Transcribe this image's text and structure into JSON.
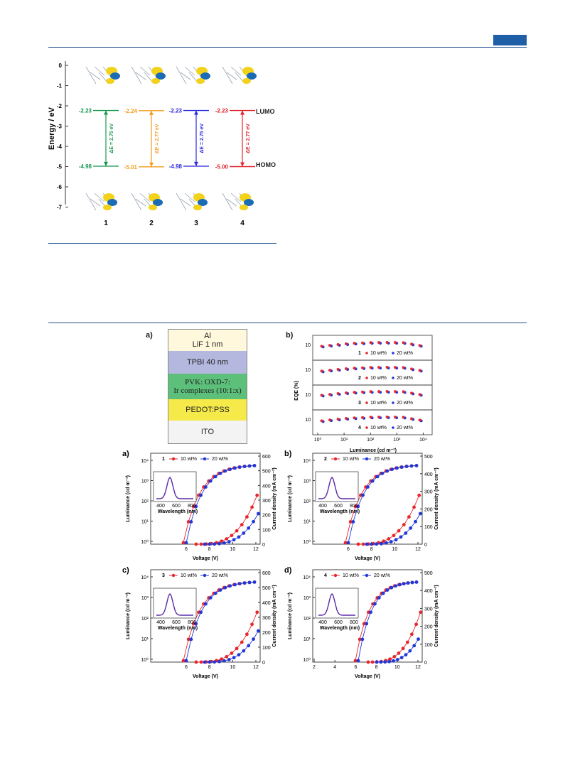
{
  "energy_diagram": {
    "ylabel": "Energy / eV",
    "yticks": [
      "0",
      "-1",
      "-2",
      "-3",
      "-4",
      "-5",
      "-6",
      "-7"
    ],
    "lumo_label": "LUMO",
    "homo_label": "HOMO",
    "complexes": [
      {
        "id": "1",
        "lumo": "-2.23",
        "homo": "-4.98",
        "gap": "ΔE = 2.75 eV",
        "color": "#1a9850"
      },
      {
        "id": "2",
        "lumo": "-2.24",
        "homo": "-5.01",
        "gap": "ΔE = 2.77 eV",
        "color": "#f39c1f"
      },
      {
        "id": "3",
        "lumo": "-2.23",
        "homo": "-4.98",
        "gap": "ΔE = 2.75 eV",
        "color": "#2c2cdc"
      },
      {
        "id": "4",
        "lumo": "-2.23",
        "homo": "-5.00",
        "gap": "ΔE = 2.77 eV",
        "color": "#e0242b"
      }
    ]
  },
  "device": {
    "panel_label": "a)",
    "layers": [
      {
        "text": "Al\nLiF 1 nm",
        "color": "#fff8dc"
      },
      {
        "text": "TPBI 40 nm",
        "color": "#b4b8de"
      },
      {
        "text": "PVK: OXD-7:\nIr complexes (10:1:x)",
        "color": "#5cbf7a"
      },
      {
        "text": "PEDOT:PSS",
        "color": "#f6ea4a"
      },
      {
        "text": "ITO",
        "color": "#f3f3f3"
      }
    ]
  },
  "eqe_panel": {
    "panel_label": "b)",
    "ylabel": "EQE (%)",
    "xlabel": "Luminance (cd m⁻²)",
    "xticks": [
      "10⁰",
      "10¹",
      "10²",
      "10³",
      "10⁴"
    ],
    "rows": [
      {
        "id": "1",
        "tick": "10"
      },
      {
        "id": "2",
        "tick": "10"
      },
      {
        "id": "3",
        "tick": "10"
      },
      {
        "id": "4",
        "tick": "10"
      }
    ],
    "legend_10": "10 wt%",
    "legend_20": "20 wt%"
  },
  "jvl_panels": [
    {
      "panel_label": "a)",
      "device": "1",
      "right_ticks": [
        "0",
        "100",
        "200",
        "300",
        "400",
        "500",
        "600"
      ],
      "xticks": [
        "6",
        "8",
        "10",
        "12"
      ]
    },
    {
      "panel_label": "b)",
      "device": "2",
      "right_ticks": [
        "0",
        "100",
        "200",
        "300",
        "400",
        "500"
      ],
      "xticks": [
        "6",
        "8",
        "10",
        "12"
      ]
    },
    {
      "panel_label": "c)",
      "device": "3",
      "right_ticks": [
        "0",
        "100",
        "200",
        "300",
        "400",
        "500",
        "600"
      ],
      "xticks": [
        "6",
        "8",
        "10",
        "12"
      ]
    },
    {
      "panel_label": "d)",
      "device": "4",
      "right_ticks": [
        "0",
        "100",
        "200",
        "300",
        "400",
        "500"
      ],
      "xticks": [
        "2",
        "4",
        "6",
        "8",
        "10",
        "12"
      ]
    }
  ],
  "jvl_common": {
    "left_label": "Luminance (cd m⁻²)",
    "right_label": "Current density (mA cm⁻²)",
    "xlabel": "Voltage (V)",
    "left_ticks": [
      "10⁰",
      "10¹",
      "10²",
      "10³",
      "10⁴"
    ],
    "legend_10": "10 wt%",
    "legend_20": "20 wt%",
    "inset_xlabel": "Wavelength (nm)",
    "inset_xticks": [
      "400",
      "600",
      "800"
    ]
  },
  "colors": {
    "red": "#e8262b",
    "blue": "#2038d8",
    "purple": "#5a2aa8",
    "rule": "#1f4e8c"
  }
}
